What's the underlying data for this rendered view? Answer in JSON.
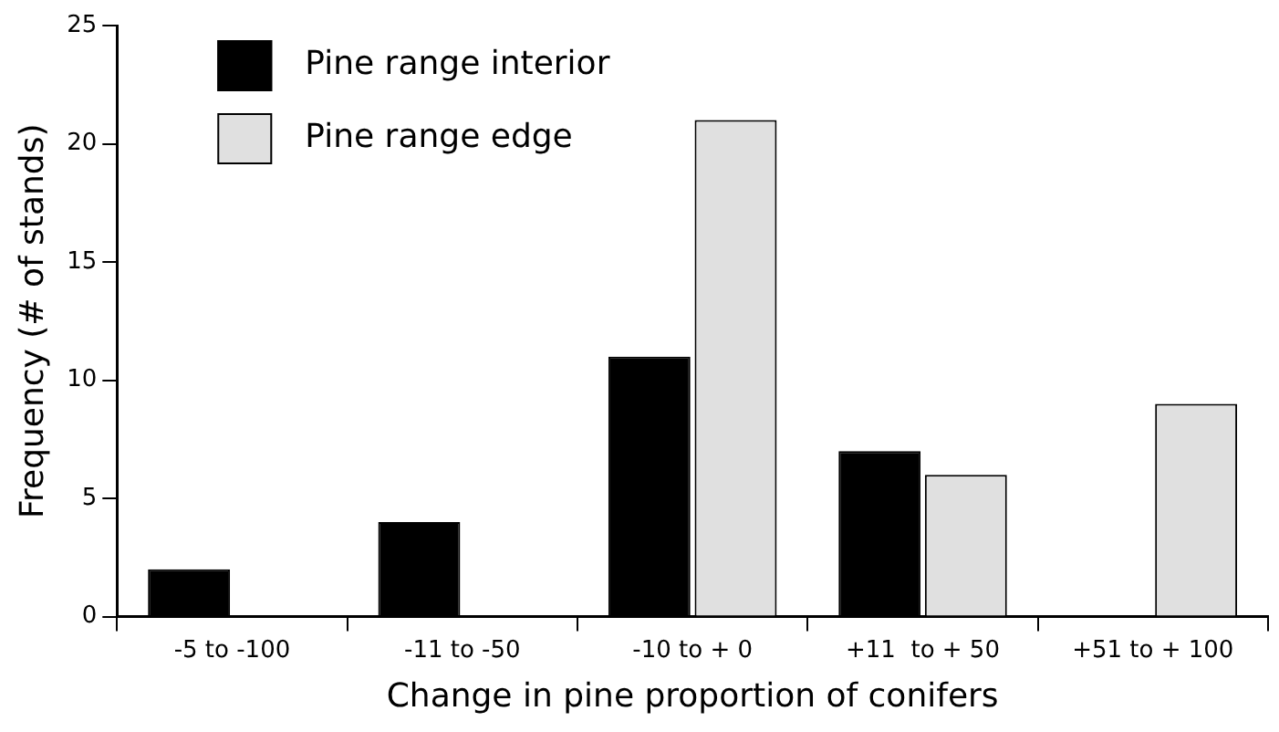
{
  "chart_data": {
    "type": "bar",
    "xlabel": "Change in pine proportion of conifers",
    "ylabel": "Frequency (# of stands)",
    "categories": [
      "-5 to -100",
      "-11 to -50",
      "-10 to + 0",
      "+11  to + 50",
      "+51 to + 100"
    ],
    "series": [
      {
        "name": "Pine range interior",
        "color": "#000000",
        "values": [
          2,
          4,
          11,
          7,
          0
        ]
      },
      {
        "name": "Pine range edge",
        "color": "#e0e0e0",
        "values": [
          0,
          0,
          21,
          6,
          9
        ]
      }
    ],
    "ylim": [
      0,
      25
    ],
    "yticks": [
      0,
      5,
      10,
      15,
      20,
      25
    ],
    "grid": false,
    "legend": "top left"
  }
}
